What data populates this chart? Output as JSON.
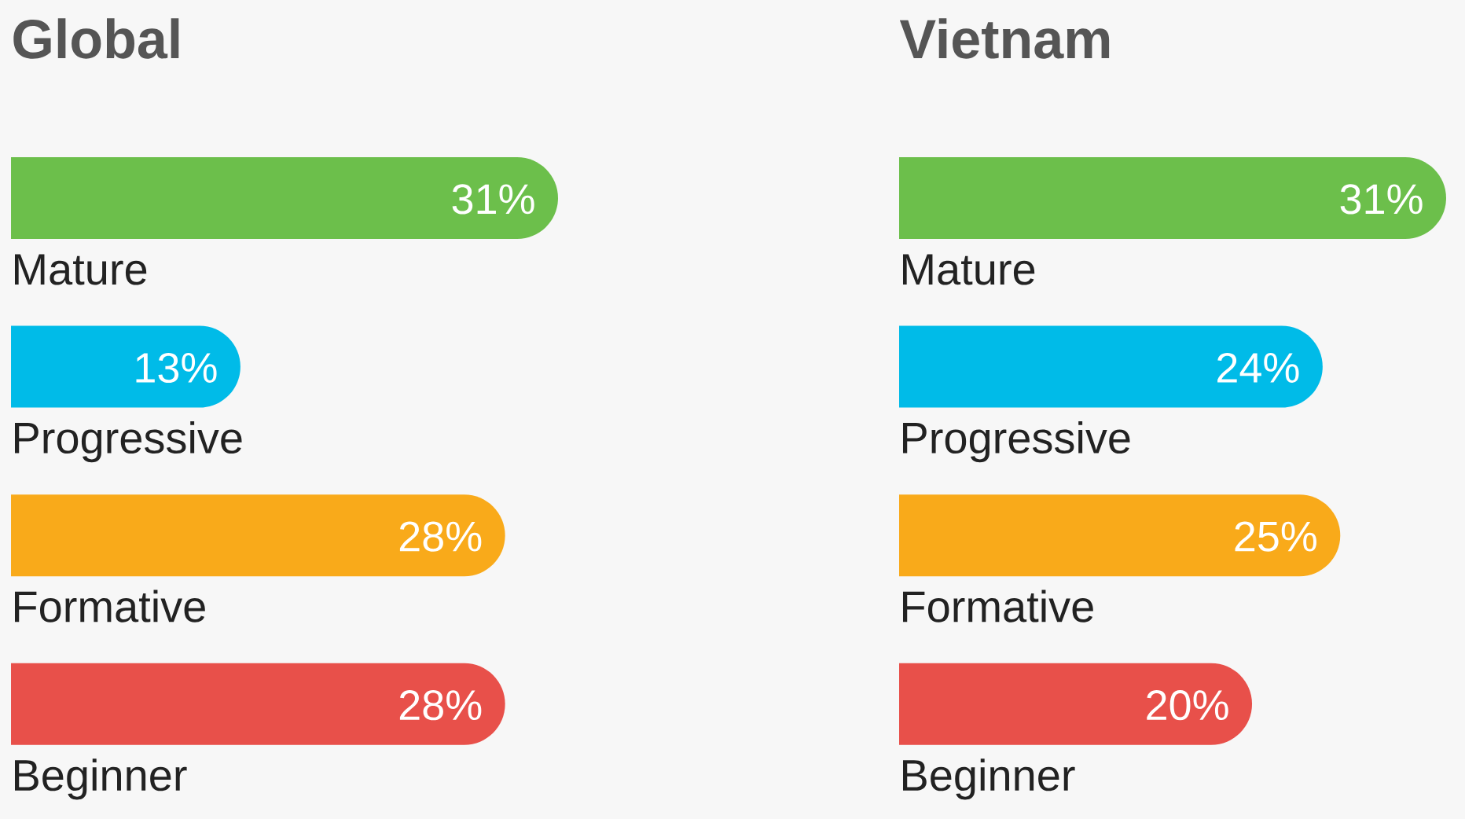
{
  "chart_data": [
    {
      "type": "bar",
      "orientation": "horizontal",
      "title": "Global",
      "categories": [
        "Mature",
        "Progressive",
        "Formative",
        "Beginner"
      ],
      "values": [
        31,
        13,
        28,
        28
      ],
      "colors": [
        "#6cbf4b",
        "#00bbe8",
        "#f9aa1a",
        "#e8504a"
      ],
      "value_labels": [
        "31%",
        "13%",
        "28%",
        "28%"
      ],
      "tick_labels": "y"
    },
    {
      "type": "bar",
      "orientation": "horizontal",
      "title": "Vietnam",
      "categories": [
        "Mature",
        "Progressive",
        "Formative",
        "Beginner"
      ],
      "values": [
        31,
        24,
        25,
        20
      ],
      "colors": [
        "#6cbf4b",
        "#00bbe8",
        "#f9aa1a",
        "#e8504a"
      ],
      "value_labels": [
        "31%",
        "24%",
        "25%",
        "20%"
      ],
      "tick_labels": "y"
    }
  ]
}
